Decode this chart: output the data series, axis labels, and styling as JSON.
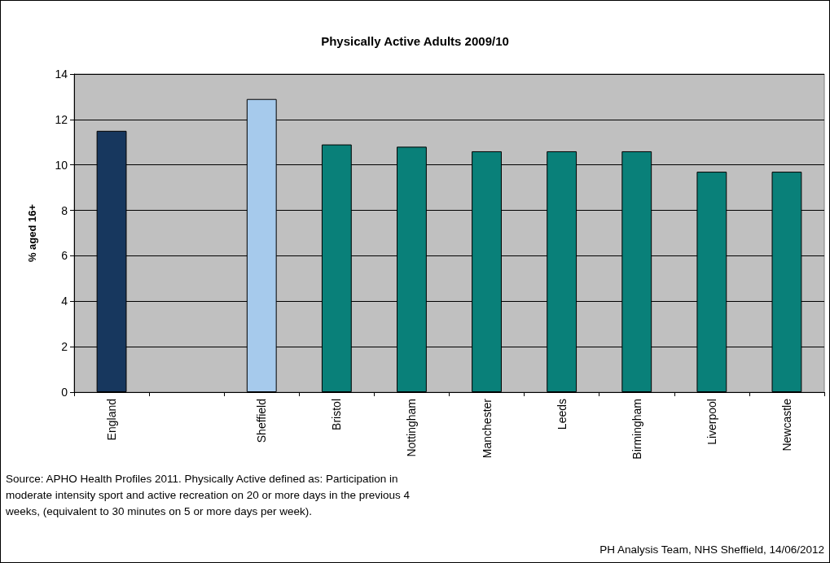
{
  "chart_data": {
    "type": "bar",
    "title": "Physically Active Adults 2009/10",
    "ylabel": "% aged 16+",
    "categories": [
      "England",
      null,
      "Sheffield",
      "Bristol",
      "Nottingham",
      "Manchester",
      "Leeds",
      "Birmingham",
      "Liverpool",
      "Newcastle"
    ],
    "values": [
      11.5,
      null,
      12.9,
      10.9,
      10.8,
      10.6,
      10.6,
      10.6,
      9.7,
      9.7
    ],
    "colors": [
      "#17375e",
      "#098079",
      "#a6caec",
      "#098079",
      "#098079",
      "#098079",
      "#098079",
      "#098079",
      "#098079",
      "#098079"
    ],
    "ylim": [
      0,
      14
    ],
    "yticks": [
      0,
      2,
      4,
      6,
      8,
      10,
      12,
      14
    ],
    "grid": "y",
    "annotations": [
      "Source: APHO Health Profiles 2011.  Physically Active defined as: Participation in moderate intensity sport and active recreation on 20 or more days in the previous 4 weeks, (equivalent to 30 minutes on 5 or more days per week).",
      "PH Analysis Team, NHS Sheffield, 14/06/2012"
    ]
  }
}
